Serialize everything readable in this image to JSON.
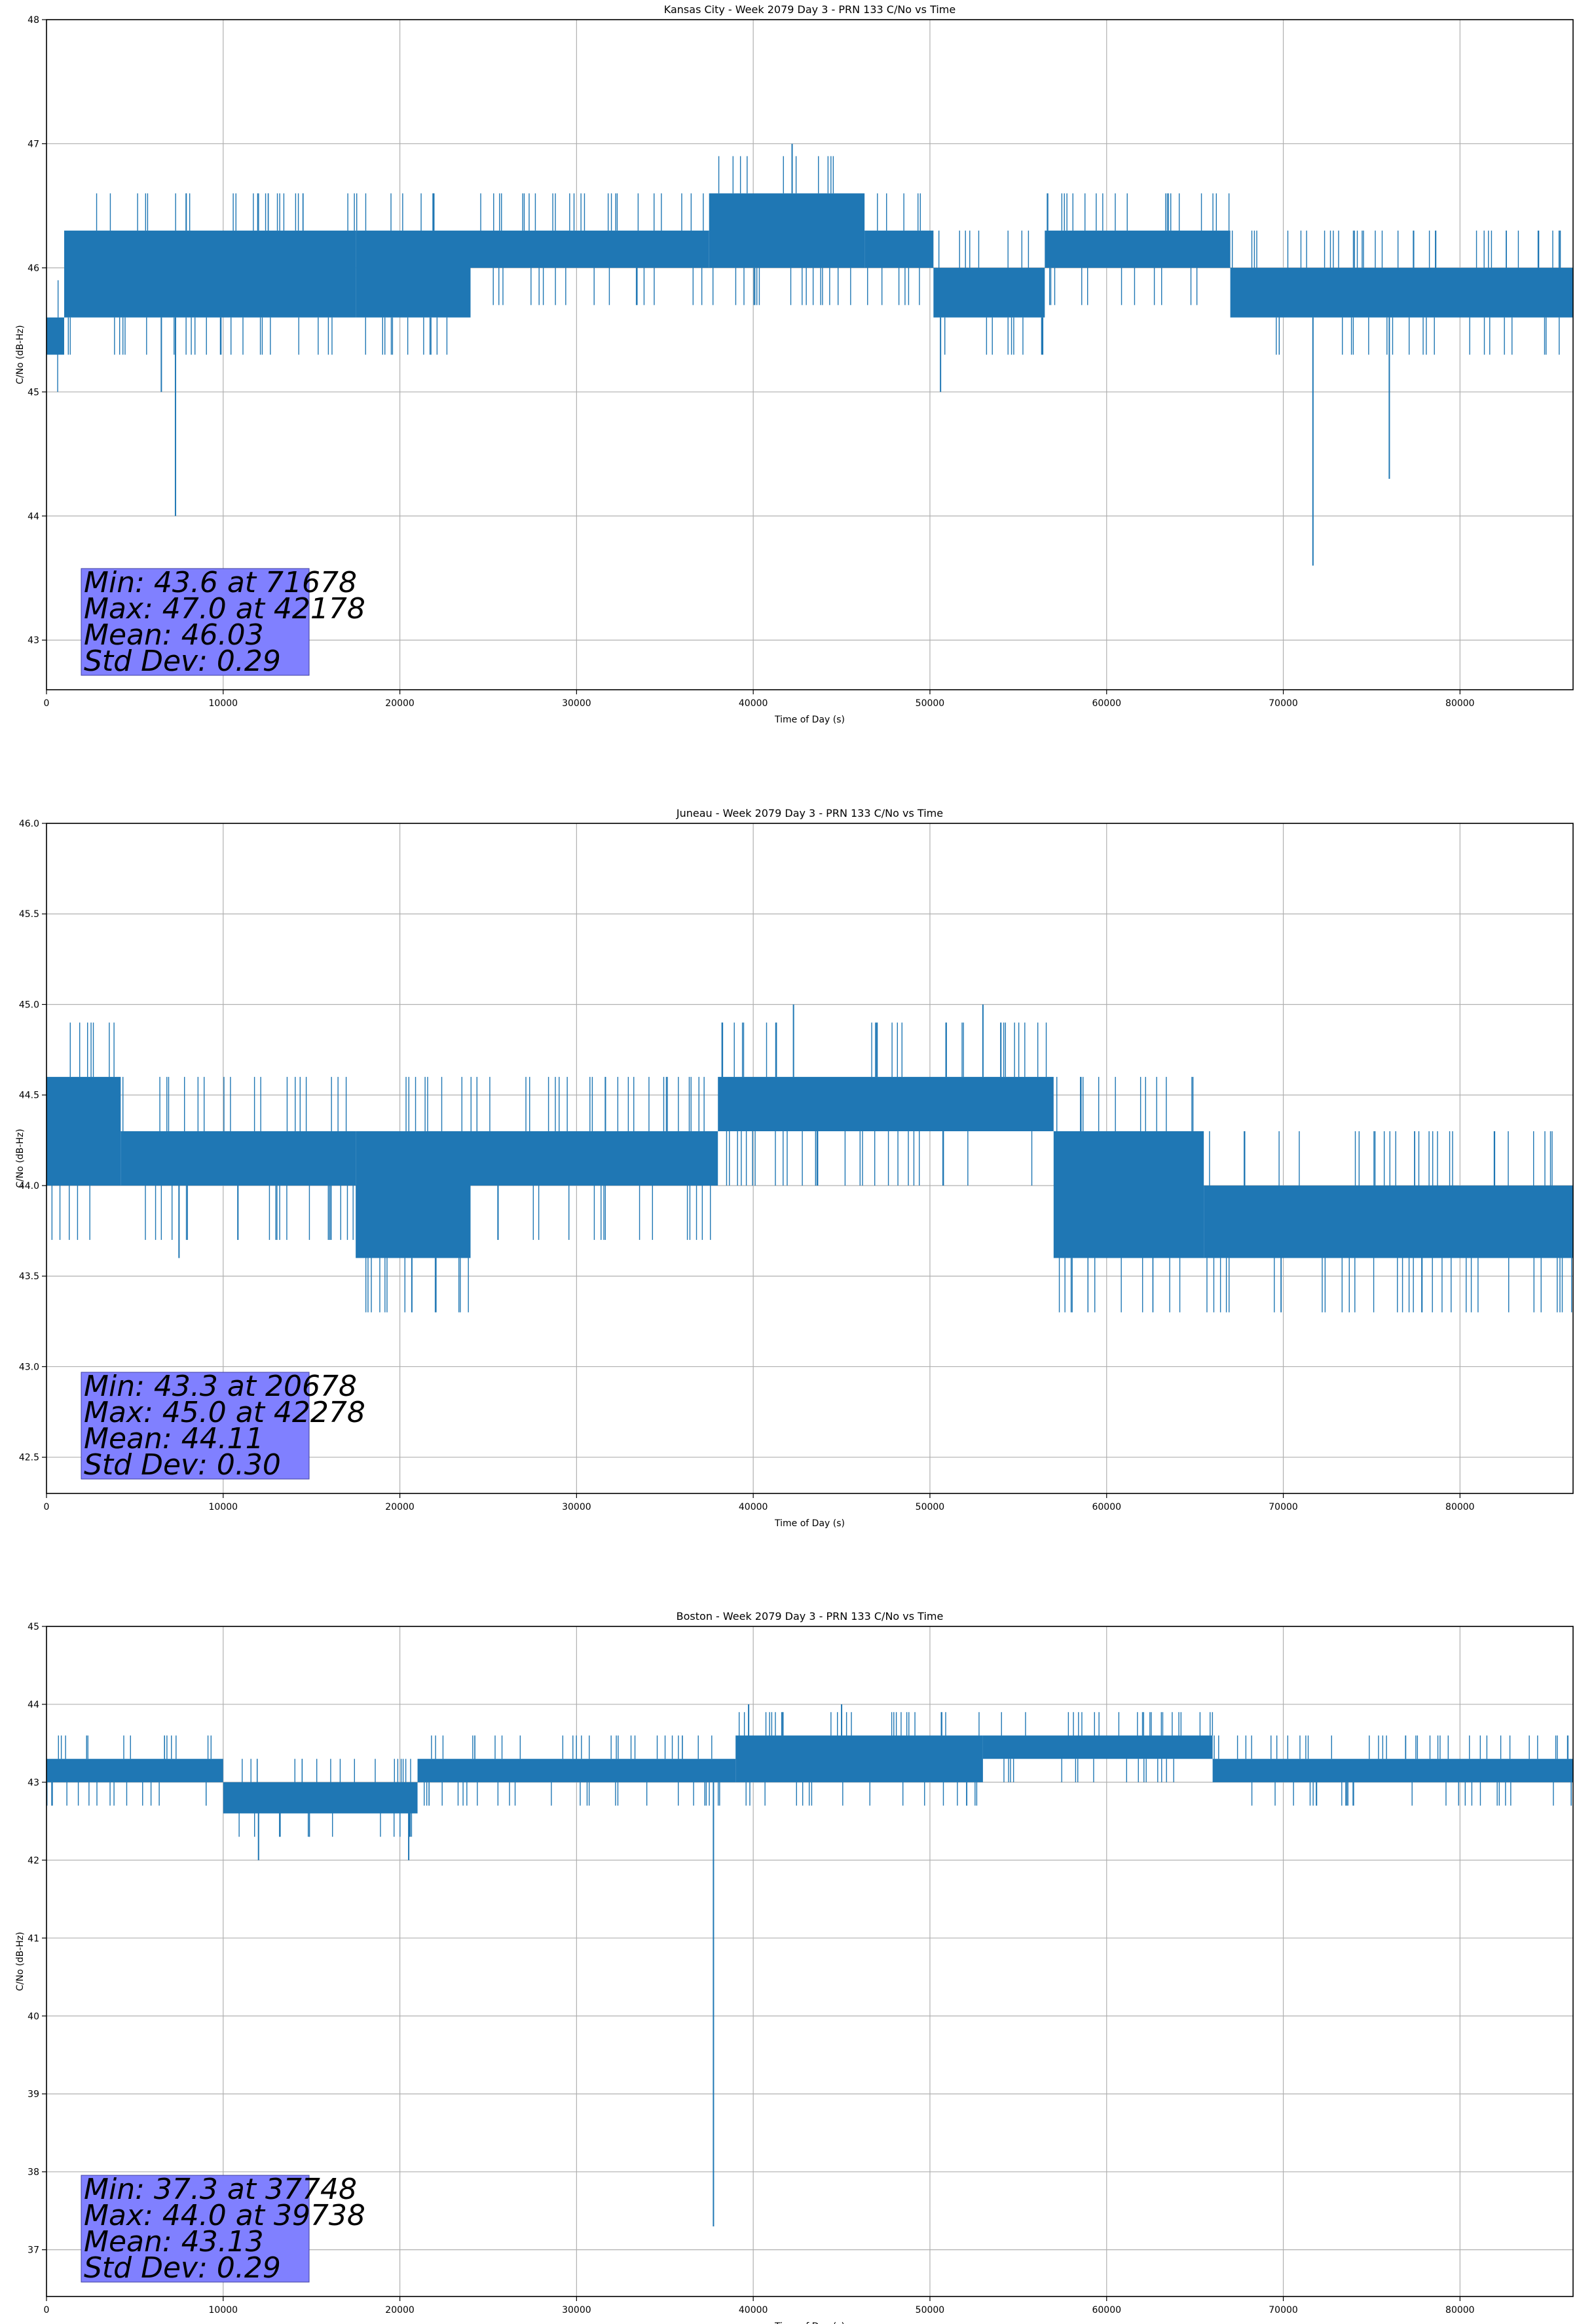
{
  "chart_data": [
    {
      "type": "line",
      "title": "Kansas City - Week 2079 Day 3 - PRN 133 C/No vs Time",
      "xlabel": "Time of Day (s)",
      "ylabel": "C/No (dB-Hz)",
      "xlim": [
        0,
        86400
      ],
      "ylim": [
        42.6,
        48
      ],
      "xticks": [
        "0",
        "10000",
        "20000",
        "30000",
        "40000",
        "50000",
        "60000",
        "70000",
        "80000"
      ],
      "yticks": [
        "43",
        "44",
        "45",
        "46",
        "47",
        "48"
      ],
      "grid": true,
      "series_color": "#1f77b4",
      "segments": [
        {
          "x": [
            0,
            1000
          ],
          "lo": 45.3,
          "hi": 45.6
        },
        {
          "x": [
            1000,
            17500
          ],
          "lo": 45.6,
          "hi": 46.3
        },
        {
          "x": [
            17500,
            24000
          ],
          "lo": 45.6,
          "hi": 46.3
        },
        {
          "x": [
            24000,
            37500
          ],
          "lo": 46.0,
          "hi": 46.3
        },
        {
          "x": [
            37500,
            46300
          ],
          "lo": 46.0,
          "hi": 46.6
        },
        {
          "x": [
            46300,
            50200
          ],
          "lo": 46.0,
          "hi": 46.3
        },
        {
          "x": [
            50200,
            56500
          ],
          "lo": 45.6,
          "hi": 46.0
        },
        {
          "x": [
            56500,
            67000
          ],
          "lo": 46.0,
          "hi": 46.3
        },
        {
          "x": [
            67000,
            86400
          ],
          "lo": 45.6,
          "hi": 46.0
        }
      ],
      "spikes": [
        {
          "x": 7300,
          "y": 44.0
        },
        {
          "x": 6500,
          "y": 45.0
        },
        {
          "x": 50600,
          "y": 45.0
        },
        {
          "x": 42200,
          "y": 47.0
        },
        {
          "x": 71678,
          "y": 43.6
        },
        {
          "x": 76000,
          "y": 44.3
        }
      ],
      "stats": [
        "Min: 43.6 at 71678",
        "Max: 47.0 at 42178",
        "Mean: 46.03",
        "Std Dev: 0.29"
      ]
    },
    {
      "type": "line",
      "title": "Juneau - Week 2079 Day 3 - PRN 133 C/No vs Time",
      "xlabel": "Time of Day (s)",
      "ylabel": "C/No (dB-Hz)",
      "xlim": [
        0,
        86400
      ],
      "ylim": [
        42.3,
        46
      ],
      "xticks": [
        "0",
        "10000",
        "20000",
        "30000",
        "40000",
        "50000",
        "60000",
        "70000",
        "80000"
      ],
      "yticks": [
        "42.5",
        "43.0",
        "43.5",
        "44.0",
        "44.5",
        "45.0",
        "45.5",
        "46.0"
      ],
      "grid": true,
      "series_color": "#1f77b4",
      "segments": [
        {
          "x": [
            0,
            4200
          ],
          "lo": 44.0,
          "hi": 44.6
        },
        {
          "x": [
            4200,
            17500
          ],
          "lo": 44.0,
          "hi": 44.3
        },
        {
          "x": [
            17500,
            24000
          ],
          "lo": 43.6,
          "hi": 44.3
        },
        {
          "x": [
            24000,
            38000
          ],
          "lo": 44.0,
          "hi": 44.3
        },
        {
          "x": [
            38000,
            57000
          ],
          "lo": 44.3,
          "hi": 44.6
        },
        {
          "x": [
            57000,
            65500
          ],
          "lo": 43.6,
          "hi": 44.3
        },
        {
          "x": [
            65500,
            86400
          ],
          "lo": 43.6,
          "hi": 44.0
        }
      ],
      "spikes": [
        {
          "x": 20678,
          "y": 43.3
        },
        {
          "x": 42278,
          "y": 45.0
        },
        {
          "x": 53000,
          "y": 45.0
        },
        {
          "x": 7500,
          "y": 43.6
        }
      ],
      "stats": [
        "Min: 43.3 at 20678",
        "Max: 45.0 at 42278",
        "Mean: 44.11",
        "Std Dev: 0.30"
      ]
    },
    {
      "type": "line",
      "title": "Boston - Week 2079 Day 3 - PRN 133 C/No vs Time",
      "xlabel": "Time of Day (s)",
      "ylabel": "C/No (dB-Hz)",
      "xlim": [
        0,
        86400
      ],
      "ylim": [
        36.4,
        45
      ],
      "xticks": [
        "0",
        "10000",
        "20000",
        "30000",
        "40000",
        "50000",
        "60000",
        "70000",
        "80000"
      ],
      "yticks": [
        "37",
        "38",
        "39",
        "40",
        "41",
        "42",
        "43",
        "44",
        "45"
      ],
      "grid": true,
      "series_color": "#1f77b4",
      "segments": [
        {
          "x": [
            0,
            10000
          ],
          "lo": 43.0,
          "hi": 43.3
        },
        {
          "x": [
            10000,
            21000
          ],
          "lo": 42.6,
          "hi": 43.0
        },
        {
          "x": [
            21000,
            39000
          ],
          "lo": 43.0,
          "hi": 43.3
        },
        {
          "x": [
            39000,
            53000
          ],
          "lo": 43.0,
          "hi": 43.6
        },
        {
          "x": [
            53000,
            66000
          ],
          "lo": 43.3,
          "hi": 43.6
        },
        {
          "x": [
            66000,
            86400
          ],
          "lo": 43.0,
          "hi": 43.3
        }
      ],
      "spikes": [
        {
          "x": 37748,
          "y": 37.3
        },
        {
          "x": 39738,
          "y": 44.0
        },
        {
          "x": 45000,
          "y": 44.0
        },
        {
          "x": 20500,
          "y": 42.0
        },
        {
          "x": 12000,
          "y": 42.0
        }
      ],
      "stats": [
        "Min: 37.3 at 37748",
        "Max: 44.0 at 39738",
        "Mean: 43.13",
        "Std Dev: 0.29"
      ]
    }
  ]
}
